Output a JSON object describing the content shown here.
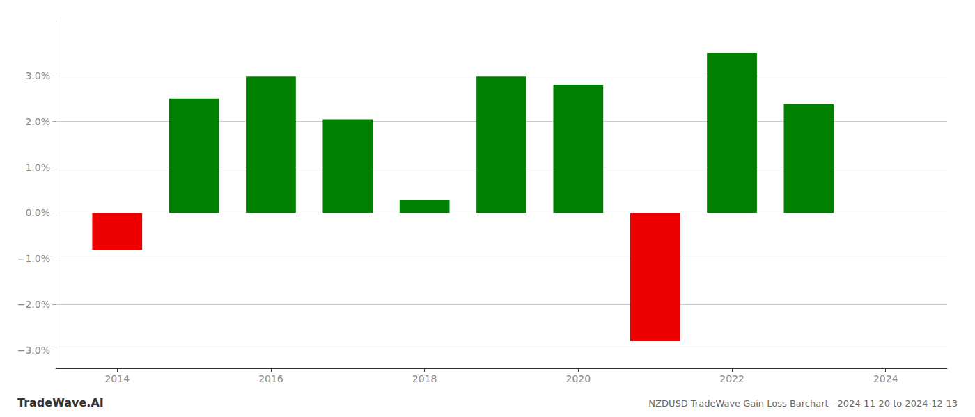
{
  "chart_data": {
    "type": "bar",
    "title": "NZDUSD TradeWave Gain Loss Barchart - 2024-11-20 to 2024-12-13",
    "annotations": [
      "TradeWave.AI"
    ],
    "x": [
      2014,
      2015,
      2016,
      2017,
      2018,
      2019,
      2020,
      2021,
      2022,
      2023
    ],
    "values": [
      -0.008,
      0.025,
      0.0298,
      0.0205,
      0.0028,
      0.0298,
      0.028,
      -0.028,
      0.035,
      0.0238
    ],
    "colors": [
      "#ee0000",
      "#008000",
      "#008000",
      "#008000",
      "#008000",
      "#008000",
      "#008000",
      "#ee0000",
      "#008000",
      "#008000"
    ],
    "xlim": [
      2013.2,
      2024.8
    ],
    "xticks": [
      2014,
      2016,
      2018,
      2020,
      2022,
      2024
    ],
    "ylim": [
      -0.034,
      0.042
    ],
    "yticks": [
      {
        "value": -0.03,
        "label": "−3.0%"
      },
      {
        "value": -0.02,
        "label": "−2.0%"
      },
      {
        "value": -0.01,
        "label": "−1.0%"
      },
      {
        "value": 0.0,
        "label": "0.0%"
      },
      {
        "value": 0.01,
        "label": "1.0%"
      },
      {
        "value": 0.02,
        "label": "2.0%"
      },
      {
        "value": 0.03,
        "label": "3.0%"
      }
    ],
    "grid": true
  }
}
